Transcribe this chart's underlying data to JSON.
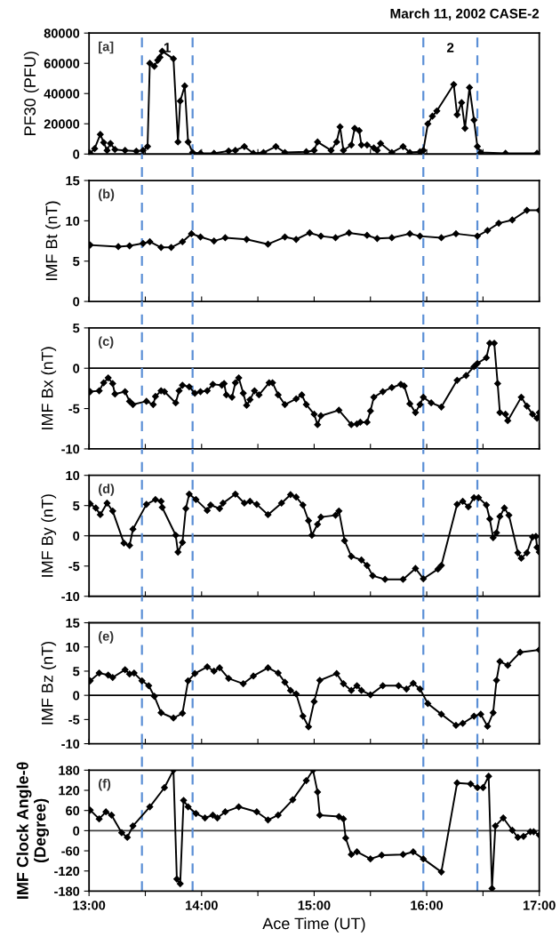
{
  "chart_data": [
    {
      "type": "line",
      "title": "March 11, 2002 CASE-2",
      "ylabel": "PF30 (PFU)",
      "marker": "diamond",
      "line_style": "solid",
      "tick_labels": "y",
      "xlim": [
        13,
        17
      ],
      "xticks": [
        {
          "value": 13,
          "label": null
        },
        {
          "value": 13.5,
          "label": null
        },
        {
          "value": 14,
          "label": null
        },
        {
          "value": 14.5,
          "label": null
        },
        {
          "value": 15,
          "label": null
        },
        {
          "value": 15.5,
          "label": null
        },
        {
          "value": 16,
          "label": null
        },
        {
          "value": 16.5,
          "label": null
        },
        {
          "value": 17,
          "label": null
        }
      ],
      "ylim": [
        0,
        80000
      ],
      "yticks": [
        0,
        20000,
        40000,
        60000,
        80000
      ],
      "annotations": [
        "[a]",
        "1",
        "2"
      ],
      "ref_lines": [
        {
          "axis": "x",
          "value": 13.47,
          "color": "#5b8fd6",
          "line_style": "dashed"
        },
        {
          "axis": "x",
          "value": 13.92,
          "color": "#5b8fd6",
          "line_style": "dashed"
        },
        {
          "axis": "x",
          "value": 15.97,
          "color": "#5b8fd6",
          "line_style": "dashed"
        },
        {
          "axis": "x",
          "value": 16.45,
          "color": "#5b8fd6",
          "line_style": "dashed"
        }
      ],
      "series": [
        {
          "color": "#000000",
          "x": [
            13.01,
            13.05,
            13.1,
            13.13,
            13.16,
            13.19,
            13.23,
            13.32,
            13.42,
            13.48,
            13.52,
            13.54,
            13.58,
            13.61,
            13.63,
            13.65,
            13.75,
            13.79,
            13.81,
            13.85,
            13.88,
            13.92,
            13.99,
            14.11,
            14.24,
            14.3,
            14.38,
            14.46,
            14.55,
            14.66,
            14.74,
            14.93,
            15.0,
            15.03,
            15.15,
            15.2,
            15.23,
            15.26,
            15.33,
            15.36,
            15.4,
            15.42,
            15.47,
            15.53,
            15.56,
            15.59,
            15.69,
            15.79,
            15.85,
            15.94,
            15.97,
            16.01,
            16.05,
            16.09,
            16.24,
            16.27,
            16.31,
            16.34,
            16.38,
            16.42,
            16.45,
            16.48,
            16.7,
            16.98
          ],
          "values": [
            500,
            3600,
            13000,
            7600,
            2400,
            7000,
            3000,
            2400,
            1900,
            2400,
            5000,
            60000,
            58000,
            62000,
            64000,
            68000,
            63000,
            8000,
            35000,
            45000,
            8000,
            1000,
            500,
            500,
            2000,
            2400,
            5000,
            500,
            1000,
            5000,
            1000,
            1500,
            2400,
            8000,
            2400,
            8000,
            18000,
            2400,
            6000,
            17000,
            15500,
            6000,
            6000,
            4000,
            2400,
            7000,
            1000,
            5000,
            1000,
            1500,
            2400,
            20000,
            25000,
            28500,
            46000,
            26000,
            34000,
            17000,
            44000,
            22500,
            5000,
            1000,
            500,
            500
          ]
        }
      ]
    },
    {
      "type": "line",
      "ylabel": "IMF Bt (nT)",
      "marker": "diamond",
      "line_style": "solid",
      "tick_labels": "y",
      "xlim": [
        13,
        17
      ],
      "xticks": [
        {
          "value": 13,
          "label": null
        },
        {
          "value": 13.5,
          "label": null
        },
        {
          "value": 14,
          "label": null
        },
        {
          "value": 14.5,
          "label": null
        },
        {
          "value": 15,
          "label": null
        },
        {
          "value": 15.5,
          "label": null
        },
        {
          "value": 16,
          "label": null
        },
        {
          "value": 16.5,
          "label": null
        },
        {
          "value": 17,
          "label": null
        }
      ],
      "ylim": [
        0,
        15
      ],
      "yticks": [
        0,
        5,
        10,
        15
      ],
      "annotations": [
        "(b)"
      ],
      "ref_lines": [
        {
          "axis": "x",
          "value": 13.47,
          "color": "#5b8fd6",
          "line_style": "dashed"
        },
        {
          "axis": "x",
          "value": 13.92,
          "color": "#5b8fd6",
          "line_style": "dashed"
        },
        {
          "axis": "x",
          "value": 15.97,
          "color": "#5b8fd6",
          "line_style": "dashed"
        },
        {
          "axis": "x",
          "value": 16.45,
          "color": "#5b8fd6",
          "line_style": "dashed"
        }
      ],
      "series": [
        {
          "color": "#000000",
          "x": [
            13.01,
            13.26,
            13.36,
            13.48,
            13.54,
            13.64,
            13.73,
            13.83,
            13.91,
            13.99,
            14.11,
            14.21,
            14.4,
            14.59,
            14.74,
            14.84,
            14.96,
            15.06,
            15.19,
            15.31,
            15.47,
            15.56,
            15.69,
            15.85,
            15.94,
            16.13,
            16.26,
            16.45,
            16.54,
            16.64,
            16.76,
            16.89,
            17.0
          ],
          "values": [
            7.0,
            6.8,
            6.9,
            7.2,
            7.4,
            6.7,
            6.7,
            7.4,
            8.4,
            8.0,
            7.5,
            7.9,
            7.7,
            7.1,
            8.0,
            7.7,
            8.5,
            8.1,
            7.9,
            8.5,
            8.2,
            7.8,
            7.9,
            8.4,
            8.1,
            7.9,
            8.4,
            8.1,
            8.8,
            9.7,
            10.1,
            11.3,
            11.3
          ]
        }
      ]
    },
    {
      "type": "line",
      "ylabel": "IMF Bx (nT)",
      "marker": "diamond",
      "line_style": "solid",
      "tick_labels": "y",
      "xlim": [
        13,
        17
      ],
      "xticks": [
        {
          "value": 13,
          "label": null
        },
        {
          "value": 13.5,
          "label": null
        },
        {
          "value": 14,
          "label": null
        },
        {
          "value": 14.5,
          "label": null
        },
        {
          "value": 15,
          "label": null
        },
        {
          "value": 15.5,
          "label": null
        },
        {
          "value": 16,
          "label": null
        },
        {
          "value": 16.5,
          "label": null
        },
        {
          "value": 17,
          "label": null
        }
      ],
      "ylim": [
        -10,
        5
      ],
      "yticks": [
        -10,
        -5,
        0,
        5
      ],
      "annotations": [
        "(c)"
      ],
      "ref_lines": [
        {
          "axis": "y",
          "value": 0,
          "color": "#000000",
          "line_style": "solid"
        },
        {
          "axis": "x",
          "value": 13.47,
          "color": "#5b8fd6",
          "line_style": "dashed"
        },
        {
          "axis": "x",
          "value": 13.92,
          "color": "#5b8fd6",
          "line_style": "dashed"
        },
        {
          "axis": "x",
          "value": 15.97,
          "color": "#5b8fd6",
          "line_style": "dashed"
        },
        {
          "axis": "x",
          "value": 16.45,
          "color": "#5b8fd6",
          "line_style": "dashed"
        }
      ],
      "series": [
        {
          "color": "#000000",
          "x": [
            13.01,
            13.09,
            13.13,
            13.17,
            13.21,
            13.23,
            13.32,
            13.36,
            13.39,
            13.51,
            13.57,
            13.59,
            13.64,
            13.67,
            13.77,
            13.8,
            13.83,
            13.89,
            13.94,
            13.99,
            14.05,
            14.1,
            14.18,
            14.2,
            14.22,
            14.27,
            14.3,
            14.33,
            14.37,
            14.4,
            14.43,
            14.47,
            14.51,
            14.6,
            14.63,
            14.68,
            14.74,
            14.84,
            14.89,
            14.93,
            15.0,
            15.03,
            15.06,
            15.22,
            15.33,
            15.38,
            15.41,
            15.47,
            15.5,
            15.53,
            15.61,
            15.69,
            15.77,
            15.8,
            15.85,
            15.9,
            15.94,
            15.97,
            16.04,
            16.13,
            16.27,
            16.35,
            16.42,
            16.45,
            16.53,
            16.56,
            16.6,
            16.63,
            16.65,
            16.7,
            16.72,
            16.84,
            16.89,
            16.94,
            16.98,
            17.0
          ],
          "values": [
            -2.9,
            -2.8,
            -1.8,
            -1.2,
            -1.9,
            -3.2,
            -2.9,
            -4.1,
            -4.5,
            -4.1,
            -4.5,
            -3.5,
            -2.8,
            -2.9,
            -4.3,
            -2.8,
            -2.1,
            -2.3,
            -3.1,
            -2.9,
            -2.8,
            -2.0,
            -2.1,
            -1.9,
            -3.3,
            -3.6,
            -1.8,
            -1.2,
            -3.1,
            -4.6,
            -3.9,
            -2.8,
            -3.3,
            -1.8,
            -1.8,
            -3.3,
            -4.5,
            -3.8,
            -3.3,
            -4.5,
            -5.7,
            -7.0,
            -5.9,
            -5.2,
            -7.0,
            -6.9,
            -6.7,
            -6.7,
            -5.3,
            -3.6,
            -2.9,
            -2.4,
            -2.0,
            -2.2,
            -4.4,
            -5.5,
            -4.5,
            -3.6,
            -4.3,
            -4.8,
            -1.5,
            -0.9,
            0.2,
            0.6,
            1.3,
            3.1,
            3.1,
            -1.9,
            -5.5,
            -5.7,
            -6.5,
            -3.6,
            -4.7,
            -5.7,
            -6.2,
            -5.5
          ]
        }
      ]
    },
    {
      "type": "line",
      "ylabel": "IMF By (nT)",
      "marker": "diamond",
      "line_style": "solid",
      "tick_labels": "y",
      "xlim": [
        13,
        17
      ],
      "xticks": [
        {
          "value": 13,
          "label": null
        },
        {
          "value": 13.5,
          "label": null
        },
        {
          "value": 14,
          "label": null
        },
        {
          "value": 14.5,
          "label": null
        },
        {
          "value": 15,
          "label": null
        },
        {
          "value": 15.5,
          "label": null
        },
        {
          "value": 16,
          "label": null
        },
        {
          "value": 16.5,
          "label": null
        },
        {
          "value": 17,
          "label": null
        }
      ],
      "ylim": [
        -10,
        10
      ],
      "yticks": [
        -10,
        -5,
        0,
        5,
        10
      ],
      "annotations": [
        "(d)"
      ],
      "ref_lines": [
        {
          "axis": "y",
          "value": 0,
          "color": "#000000",
          "line_style": "solid"
        },
        {
          "axis": "x",
          "value": 13.47,
          "color": "#5b8fd6",
          "line_style": "dashed"
        },
        {
          "axis": "x",
          "value": 13.92,
          "color": "#5b8fd6",
          "line_style": "dashed"
        },
        {
          "axis": "x",
          "value": 15.97,
          "color": "#5b8fd6",
          "line_style": "dashed"
        },
        {
          "axis": "x",
          "value": 16.45,
          "color": "#5b8fd6",
          "line_style": "dashed"
        }
      ],
      "series": [
        {
          "color": "#000000",
          "x": [
            13.01,
            13.06,
            13.1,
            13.16,
            13.21,
            13.31,
            13.36,
            13.39,
            13.51,
            13.59,
            13.64,
            13.65,
            13.77,
            13.79,
            13.83,
            13.86,
            13.89,
            13.95,
            14.05,
            14.08,
            14.16,
            14.19,
            14.3,
            14.38,
            14.43,
            14.49,
            14.59,
            14.71,
            14.79,
            14.84,
            14.9,
            14.95,
            14.98,
            15.03,
            15.06,
            15.19,
            15.22,
            15.27,
            15.33,
            15.42,
            15.47,
            15.52,
            15.63,
            15.79,
            15.9,
            15.97,
            16.1,
            16.13,
            16.27,
            16.32,
            16.37,
            16.42,
            16.46,
            16.53,
            16.56,
            16.59,
            16.62,
            16.65,
            16.69,
            16.73,
            16.81,
            16.84,
            16.89,
            16.94,
            16.97,
            16.98,
            17.0
          ],
          "values": [
            5.3,
            4.6,
            3.5,
            5.4,
            4.1,
            -1.2,
            -1.6,
            1.1,
            5.2,
            6.0,
            5.7,
            4.7,
            0.1,
            -2.7,
            -1.1,
            4.5,
            6.9,
            6.0,
            4.2,
            5.1,
            4.5,
            5.4,
            6.9,
            5.4,
            5.7,
            5.2,
            3.5,
            5.4,
            6.8,
            6.4,
            5.1,
            2.5,
            0.1,
            1.9,
            3.1,
            3.4,
            4.1,
            -0.8,
            -3.4,
            -4.0,
            -4.9,
            -6.6,
            -7.2,
            -7.2,
            -5.4,
            -7.1,
            -5.5,
            -4.9,
            5.2,
            5.7,
            4.8,
            6.3,
            6.3,
            5.1,
            2.8,
            -0.3,
            0.5,
            3.2,
            4.6,
            3.4,
            -2.8,
            -3.7,
            -2.8,
            -0.2,
            -0.1,
            -1.9,
            -2.7
          ]
        }
      ]
    },
    {
      "type": "line",
      "ylabel": "IMF Bz (nT)",
      "marker": "diamond",
      "line_style": "solid",
      "tick_labels": "y",
      "xlim": [
        13,
        17
      ],
      "xticks": [
        {
          "value": 13,
          "label": null
        },
        {
          "value": 13.5,
          "label": null
        },
        {
          "value": 14,
          "label": null
        },
        {
          "value": 14.5,
          "label": null
        },
        {
          "value": 15,
          "label": null
        },
        {
          "value": 15.5,
          "label": null
        },
        {
          "value": 16,
          "label": null
        },
        {
          "value": 16.5,
          "label": null
        },
        {
          "value": 17,
          "label": null
        }
      ],
      "ylim": [
        -10,
        15
      ],
      "yticks": [
        -10,
        -5,
        0,
        5,
        10,
        15
      ],
      "annotations": [
        "(e)"
      ],
      "ref_lines": [
        {
          "axis": "y",
          "value": 0,
          "color": "#000000",
          "line_style": "solid"
        },
        {
          "axis": "x",
          "value": 13.47,
          "color": "#5b8fd6",
          "line_style": "dashed"
        },
        {
          "axis": "x",
          "value": 13.92,
          "color": "#5b8fd6",
          "line_style": "dashed"
        },
        {
          "axis": "x",
          "value": 15.97,
          "color": "#5b8fd6",
          "line_style": "dashed"
        },
        {
          "axis": "x",
          "value": 16.45,
          "color": "#5b8fd6",
          "line_style": "dashed"
        }
      ],
      "series": [
        {
          "color": "#000000",
          "x": [
            13.01,
            13.09,
            13.17,
            13.21,
            13.32,
            13.36,
            13.4,
            13.47,
            13.53,
            13.58,
            13.64,
            13.75,
            13.83,
            13.88,
            13.94,
            14.05,
            14.11,
            14.16,
            14.24,
            14.37,
            14.46,
            14.59,
            14.68,
            14.74,
            14.79,
            14.84,
            14.9,
            14.95,
            15.0,
            15.05,
            15.2,
            15.26,
            15.33,
            15.38,
            15.42,
            15.5,
            15.61,
            15.75,
            15.82,
            15.88,
            15.94,
            16.01,
            16.13,
            16.26,
            16.32,
            16.42,
            16.48,
            16.54,
            16.59,
            16.62,
            16.65,
            16.72,
            16.83,
            17.0
          ],
          "values": [
            3.0,
            4.6,
            4.2,
            3.7,
            5.3,
            4.4,
            4.6,
            3.0,
            2.0,
            -0.2,
            -3.6,
            -4.7,
            -3.7,
            3.0,
            4.5,
            5.9,
            5.0,
            5.7,
            3.5,
            2.4,
            4.0,
            5.7,
            4.6,
            2.7,
            1.0,
            0.3,
            -4.3,
            -6.5,
            -1.3,
            3.1,
            4.5,
            2.4,
            1.0,
            2.0,
            1.0,
            0.1,
            2.0,
            2.0,
            1.3,
            2.5,
            1.3,
            -1.7,
            -3.9,
            -6.2,
            -5.8,
            -4.3,
            -3.9,
            -6.4,
            -3.6,
            3.1,
            7.0,
            6.2,
            8.9,
            9.4
          ]
        }
      ]
    },
    {
      "type": "line",
      "ylabel": "IMF Clock Angle-θ\n(Degree)",
      "xlabel": "Ace Time (UT)",
      "marker": "diamond",
      "line_style": "solid",
      "xlim": [
        13,
        17
      ],
      "xticks": [
        {
          "value": 13,
          "label": "13:00"
        },
        {
          "value": 13.5,
          "label": null
        },
        {
          "value": 14,
          "label": "14:00"
        },
        {
          "value": 14.5,
          "label": null
        },
        {
          "value": 15,
          "label": "15:00"
        },
        {
          "value": 15.5,
          "label": null
        },
        {
          "value": 16,
          "label": "16:00"
        },
        {
          "value": 16.5,
          "label": null
        },
        {
          "value": 17,
          "label": "17:00"
        }
      ],
      "ylim": [
        -180,
        180
      ],
      "yticks": [
        -180,
        -120,
        -60,
        0,
        60,
        120,
        180
      ],
      "annotations": [
        "(f)"
      ],
      "ref_lines": [
        {
          "axis": "y",
          "value": 0,
          "color": "#404040",
          "line_style": "solid"
        },
        {
          "axis": "x",
          "value": 13.47,
          "color": "#5b8fd6",
          "line_style": "dashed"
        },
        {
          "axis": "x",
          "value": 13.92,
          "color": "#5b8fd6",
          "line_style": "dashed"
        },
        {
          "axis": "x",
          "value": 15.97,
          "color": "#5b8fd6",
          "line_style": "dashed"
        },
        {
          "axis": "x",
          "value": 16.45,
          "color": "#5b8fd6",
          "line_style": "dashed"
        }
      ],
      "series": [
        {
          "color": "#000000",
          "x": [
            13.01,
            13.09,
            13.15,
            13.2,
            13.29,
            13.34,
            13.39,
            13.54,
            13.67,
            13.75,
            13.78,
            13.81,
            13.84,
            13.88,
            13.95,
            14.03,
            14.1,
            14.14,
            14.21,
            14.33,
            14.49,
            14.59,
            14.68,
            14.81,
            14.93,
            14.99,
            15.03,
            15.05,
            15.22,
            15.26,
            15.28,
            15.33,
            15.38,
            15.5,
            15.6,
            15.79,
            15.88,
            15.97,
            16.13,
            16.27,
            16.39,
            16.45,
            16.5,
            16.55,
            16.58,
            16.61,
            16.68,
            16.76,
            16.81,
            16.86,
            16.92,
            16.95,
            17.0
          ],
          "values": [
            61,
            35,
            56,
            46,
            -6,
            -20,
            14,
            71,
            128,
            180,
            -144,
            -158,
            90,
            71,
            51,
            38,
            46,
            38,
            56,
            71,
            56,
            32,
            46,
            92,
            149,
            180,
            115,
            46,
            42,
            35,
            -22,
            -71,
            -63,
            -84,
            -73,
            -71,
            -63,
            -84,
            -123,
            142,
            139,
            128,
            128,
            162,
            -172,
            14,
            38,
            1,
            -20,
            -17,
            -3,
            -3,
            -13
          ]
        }
      ]
    }
  ]
}
